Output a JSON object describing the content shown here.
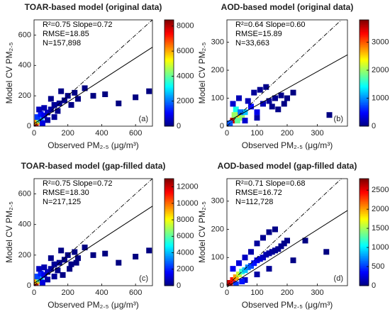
{
  "chart_data": [
    {
      "type": "density-scatter",
      "title": "TOAR-based model (original data)",
      "xlabel": "Observed PM₂.₅ (μg/m³)",
      "ylabel": "Model CV PM₂.₅",
      "annotations": [
        "R²=0.75  Slope=0.72",
        "RMSE=18.85",
        "N=157,898"
      ],
      "panel_label": "(a)",
      "xlim": [
        0,
        700
      ],
      "xticks": [
        0,
        200,
        400,
        600
      ],
      "ylim": [
        0,
        700
      ],
      "yticks": [
        0,
        200,
        400,
        600
      ],
      "clim": [
        0,
        8500
      ],
      "cticks": [
        0,
        2000,
        4000,
        6000,
        8000
      ],
      "fit": {
        "slope": 0.72,
        "intercept": 16
      },
      "cells": {
        "x": [
          10,
          20,
          30,
          40,
          20,
          40,
          60,
          80,
          60,
          100,
          120,
          150,
          100,
          180,
          200,
          140,
          240,
          80,
          160,
          220,
          300,
          260,
          350,
          420,
          500,
          600,
          680,
          30,
          50,
          120
        ],
        "y": [
          20,
          30,
          40,
          50,
          60,
          80,
          70,
          90,
          120,
          110,
          140,
          150,
          180,
          170,
          200,
          100,
          220,
          40,
          230,
          140,
          250,
          180,
          200,
          210,
          150,
          190,
          230,
          110,
          20,
          60
        ],
        "values": [
          8000,
          6000,
          4000,
          2500,
          1500,
          1200,
          900,
          600,
          400,
          300,
          200,
          150,
          100,
          80,
          60,
          100,
          40,
          300,
          50,
          60,
          20,
          20,
          10,
          5,
          5,
          5,
          5,
          500,
          800,
          200
        ]
      }
    },
    {
      "type": "density-scatter",
      "title": "AOD-based model (original data)",
      "xlabel": "Observed PM₂.₅ (μg/m³)",
      "ylabel": "Model CV PM₂.₅",
      "annotations": [
        "R²=0.64  Slope=0.60",
        "RMSE=15.89",
        "N=33,663"
      ],
      "panel_label": "(b)",
      "xlim": [
        0,
        400
      ],
      "xticks": [
        0,
        100,
        200,
        300
      ],
      "ylim": [
        0,
        380
      ],
      "yticks": [
        0,
        100,
        200,
        300
      ],
      "clim": [
        0,
        3800
      ],
      "cticks": [
        0,
        1000,
        2000,
        3000
      ],
      "fit": {
        "slope": 0.6,
        "intercept": 15
      },
      "cells": {
        "x": [
          20,
          30,
          40,
          30,
          50,
          60,
          80,
          100,
          120,
          140,
          160,
          180,
          200,
          20,
          40,
          70,
          90,
          110,
          150,
          130,
          60,
          170,
          340,
          220,
          10,
          25,
          35,
          45,
          100,
          190
        ],
        "y": [
          20,
          30,
          40,
          60,
          30,
          50,
          70,
          50,
          80,
          90,
          100,
          110,
          100,
          80,
          100,
          90,
          120,
          130,
          70,
          140,
          20,
          60,
          40,
          120,
          10,
          40,
          20,
          50,
          30,
          80
        ],
        "values": [
          3500,
          3000,
          2500,
          1500,
          2000,
          1200,
          500,
          400,
          200,
          100,
          60,
          40,
          20,
          300,
          200,
          200,
          100,
          60,
          50,
          40,
          300,
          30,
          10,
          10,
          800,
          2000,
          1800,
          900,
          150,
          20
        ]
      }
    },
    {
      "type": "density-scatter",
      "title": "TOAR-based model (gap-filled data)",
      "xlabel": "Observed PM₂.₅ (μg/m³)",
      "ylabel": "Model CV PM₂.₅",
      "annotations": [
        "R²=0.75  Slope=0.72",
        "RMSE=18.30",
        "N=217,125"
      ],
      "panel_label": "(c)",
      "xlim": [
        0,
        700
      ],
      "xticks": [
        0,
        200,
        400,
        600
      ],
      "ylim": [
        0,
        700
      ],
      "yticks": [
        0,
        200,
        400,
        600
      ],
      "clim": [
        0,
        13000
      ],
      "cticks": [
        0,
        2000,
        4000,
        6000,
        8000,
        10000,
        12000
      ],
      "fit": {
        "slope": 0.72,
        "intercept": 16
      },
      "cells": {
        "x": [
          10,
          20,
          30,
          40,
          20,
          40,
          60,
          80,
          60,
          100,
          120,
          150,
          100,
          180,
          200,
          140,
          240,
          80,
          160,
          220,
          300,
          260,
          350,
          420,
          500,
          600,
          680,
          30,
          50,
          120,
          210,
          250,
          170
        ],
        "y": [
          20,
          30,
          40,
          50,
          60,
          80,
          70,
          90,
          120,
          110,
          140,
          150,
          180,
          170,
          200,
          100,
          220,
          40,
          230,
          140,
          250,
          180,
          200,
          210,
          150,
          190,
          230,
          110,
          20,
          60,
          110,
          150,
          70
        ],
        "values": [
          12500,
          9000,
          6000,
          4000,
          2500,
          2000,
          1400,
          900,
          600,
          450,
          300,
          220,
          150,
          120,
          90,
          150,
          60,
          450,
          70,
          90,
          30,
          30,
          15,
          8,
          8,
          8,
          8,
          800,
          1200,
          300,
          60,
          40,
          80
        ]
      }
    },
    {
      "type": "density-scatter",
      "title": "AOD-based model (gap-filled data)",
      "xlabel": "Observed PM₂.₅ (μg/m³)",
      "ylabel": "Model CV PM₂.₅",
      "annotations": [
        "R²=0.71  Slope=0.68",
        "RMSE=16.72",
        "N=112,728"
      ],
      "panel_label": "(d)",
      "xlim": [
        0,
        400
      ],
      "xticks": [
        0,
        100,
        200,
        300
      ],
      "ylim": [
        0,
        380
      ],
      "yticks": [
        0,
        100,
        200,
        300
      ],
      "clim": [
        0,
        2800
      ],
      "cticks": [
        0,
        500,
        1000,
        1500,
        2000,
        2500
      ],
      "fit": {
        "slope": 0.68,
        "intercept": -5
      },
      "cells": {
        "x": [
          10,
          20,
          30,
          40,
          50,
          60,
          70,
          80,
          90,
          100,
          110,
          120,
          130,
          140,
          150,
          160,
          170,
          180,
          190,
          200,
          20,
          40,
          60,
          80,
          100,
          120,
          140,
          160,
          60,
          100,
          140,
          30,
          50,
          220,
          260,
          330
        ],
        "y": [
          10,
          20,
          30,
          40,
          50,
          55,
          65,
          70,
          80,
          90,
          95,
          100,
          110,
          115,
          120,
          125,
          130,
          140,
          150,
          160,
          60,
          80,
          100,
          120,
          150,
          170,
          190,
          200,
          20,
          40,
          60,
          5,
          15,
          90,
          160,
          120
        ],
        "values": [
          2600,
          2400,
          2000,
          1600,
          1200,
          900,
          700,
          550,
          400,
          300,
          220,
          180,
          130,
          100,
          80,
          60,
          50,
          40,
          30,
          20,
          300,
          250,
          180,
          120,
          80,
          50,
          30,
          20,
          200,
          100,
          60,
          500,
          400,
          15,
          10,
          5
        ]
      }
    }
  ]
}
